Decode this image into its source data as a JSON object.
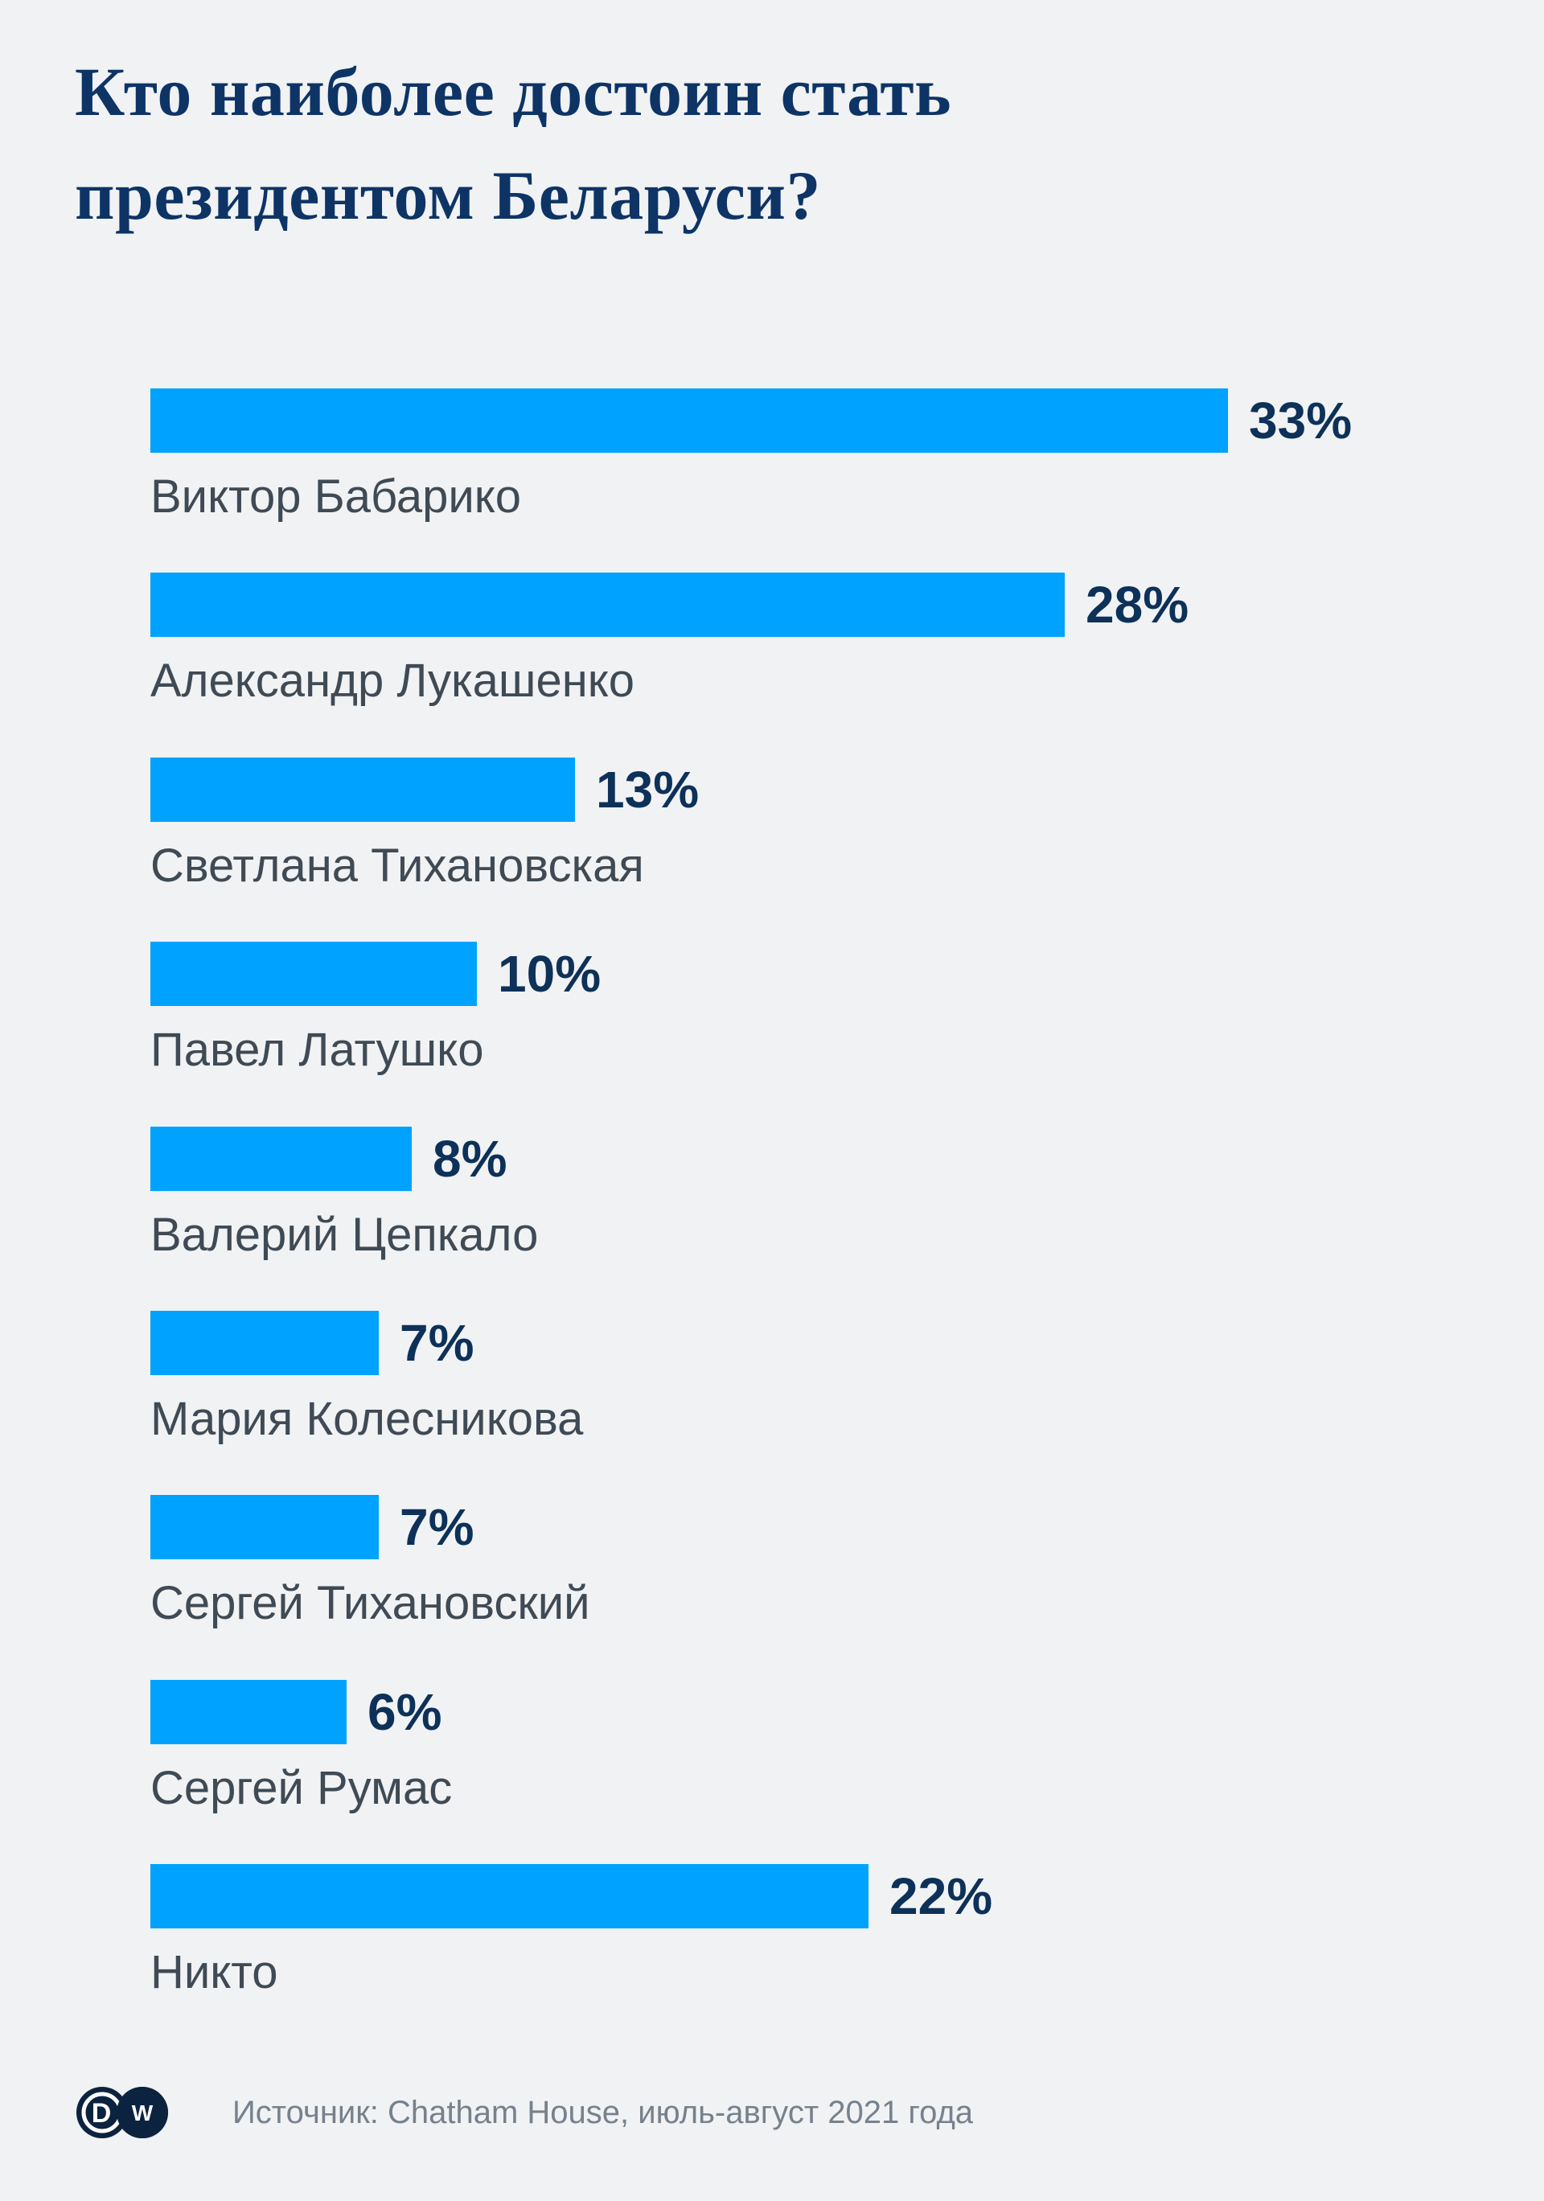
{
  "page": {
    "background_color": "#f0f2f4"
  },
  "title": {
    "full_text": "Кто наиболее достоин стать президентом Беларуси?",
    "lines": [
      "Кто наиболее достоин стать",
      "президентом Беларуси?"
    ],
    "color": "#0e3466"
  },
  "chart_data": {
    "type": "bar",
    "orientation": "horizontal",
    "title": "Кто наиболее достоин стать президентом Беларуси?",
    "categories": [
      "Виктор Бабарико",
      "Александр Лукашенко",
      "Светлана Тихановская",
      "Павел Латушко",
      "Валерий Цепкало",
      "Мария Колесникова",
      "Сергей Тихановский",
      "Сергей Румас",
      "Никто"
    ],
    "values": [
      33,
      28,
      13,
      10,
      8,
      7,
      7,
      6,
      22
    ],
    "value_labels": [
      "33%",
      "28%",
      "13%",
      "10%",
      "8%",
      "7%",
      "7%",
      "6%",
      "22%"
    ],
    "value_suffix": "%",
    "xlim": [
      0,
      33
    ],
    "grid": false,
    "legend": false,
    "axes_visible": false,
    "bar_color": "#00a2ff",
    "value_label_color": "#0d3158",
    "category_label_color": "#3f4a54"
  },
  "footer": {
    "logo_letters": [
      "D",
      "W"
    ],
    "logo_color": "#0c2340",
    "source_text": "Источник: Chatham House, июль-август 2021 года",
    "source_color": "#76818d"
  }
}
